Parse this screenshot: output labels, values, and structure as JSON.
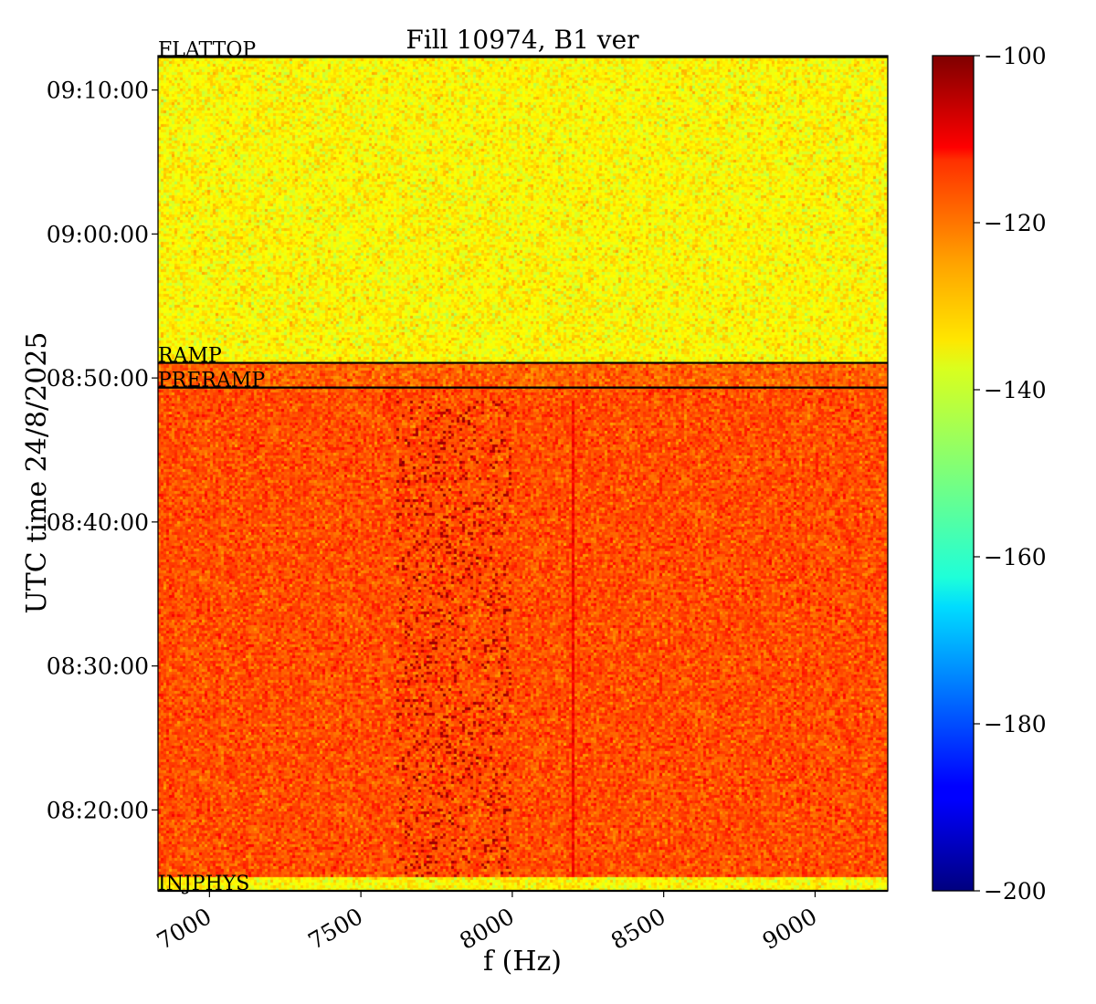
{
  "chart_data": {
    "type": "heatmap",
    "title": "Fill 10974, B1 ver",
    "xlabel": "f (Hz)",
    "ylabel": "UTC time 24/8/2025",
    "xlim": [
      6830,
      9240
    ],
    "x_ticks": [
      7000,
      7500,
      8000,
      8500,
      9000
    ],
    "x_tick_labels": [
      "7000",
      "7500",
      "8000",
      "8500",
      "9000"
    ],
    "ylim": [
      "08:14:23",
      "09:12:23"
    ],
    "y_ticks": [
      "08:20:00",
      "08:30:00",
      "08:40:00",
      "08:50:00",
      "09:00:00",
      "09:10:00"
    ],
    "y_tick_labels": [
      "08:20:00",
      "08:30:00",
      "08:40:00",
      "08:50:00",
      "09:00:00",
      "09:10:00"
    ],
    "colorbar": {
      "colormap": "jet",
      "range": [
        -200,
        -100
      ],
      "ticks": [
        -200,
        -180,
        -160,
        -140,
        -120,
        -100
      ],
      "tick_labels": [
        "−200",
        "−180",
        "−160",
        "−140",
        "−120",
        "−100"
      ]
    },
    "phases": [
      {
        "label": "INJPHYS",
        "start": "08:14:23"
      },
      {
        "label": "PRERAMP",
        "start": "08:49:20"
      },
      {
        "label": "RAMP",
        "start": "08:51:03"
      },
      {
        "label": "FLATTOP",
        "start": "09:12:17"
      }
    ],
    "regions": [
      {
        "from": "08:14:23",
        "to": "08:15:18",
        "mean_level": -137
      },
      {
        "from": "08:15:18",
        "to": "08:49:20",
        "mean_level": -120
      },
      {
        "from": "08:49:20",
        "to": "08:51:03",
        "mean_level": -122
      },
      {
        "from": "08:51:03",
        "to": "09:12:23",
        "mean_level": -137
      }
    ],
    "features": [
      {
        "kind": "vertical_line",
        "f_hz": 8200,
        "from": "08:15:18",
        "to": "08:48:30",
        "level": -112
      },
      {
        "kind": "dark_band",
        "f_from_hz": 7620,
        "f_to_hz": 8000,
        "from": "08:15:18",
        "to": "08:48:30",
        "level": -105
      }
    ]
  }
}
